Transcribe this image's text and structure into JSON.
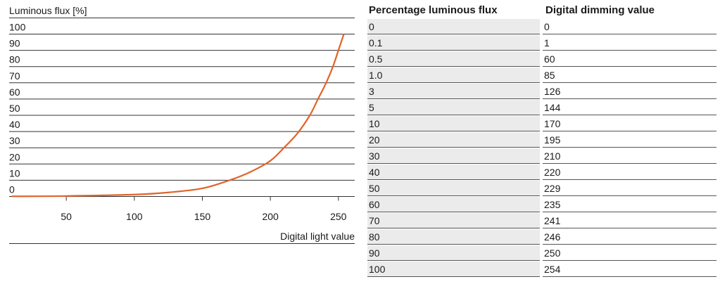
{
  "chart_data": {
    "type": "line",
    "title": "",
    "ylabel": "Luminous flux [%]",
    "xlabel": "Digital light value",
    "yticks": [
      "100",
      "90",
      "80",
      "70",
      "60",
      "50",
      "40",
      "30",
      "20",
      "10",
      "0"
    ],
    "xticks": [
      "50",
      "100",
      "150",
      "200",
      "250"
    ],
    "xlim": [
      8,
      262
    ],
    "ylim": [
      0,
      100
    ],
    "series": [
      {
        "color": "#e0642a",
        "x": [
          10,
          50,
          100,
          125,
          150,
          170,
          185,
          200,
          210,
          220,
          229,
          235,
          241,
          246,
          250,
          254
        ],
        "y": [
          0.1,
          0.3,
          1.2,
          2.5,
          5,
          10,
          15,
          22,
          30,
          39,
          50,
          60,
          70,
          80,
          90,
          100
        ]
      }
    ]
  },
  "table": {
    "headers": [
      "Percentage luminous flux",
      "Digital dimming value"
    ],
    "rows": [
      [
        "0",
        "0"
      ],
      [
        "0.1",
        "1"
      ],
      [
        "0.5",
        "60"
      ],
      [
        "1.0",
        "85"
      ],
      [
        "3",
        "126"
      ],
      [
        "5",
        "144"
      ],
      [
        "10",
        "170"
      ],
      [
        "20",
        "195"
      ],
      [
        "30",
        "210"
      ],
      [
        "40",
        "220"
      ],
      [
        "50",
        "229"
      ],
      [
        "60",
        "235"
      ],
      [
        "70",
        "241"
      ],
      [
        "80",
        "246"
      ],
      [
        "90",
        "250"
      ],
      [
        "100",
        "254"
      ]
    ]
  }
}
